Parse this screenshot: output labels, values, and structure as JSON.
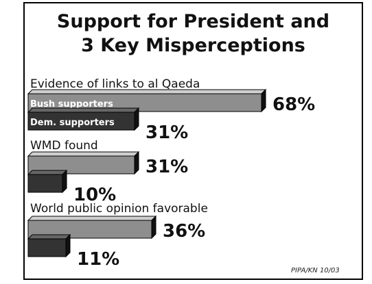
{
  "title_lines": [
    "Support for President and",
    "3 Key Misperceptions"
  ],
  "source": "PIPA/KN 10/03",
  "chart_data": {
    "type": "bar",
    "orientation": "horizontal",
    "title": "Support for President and 3 Key Misperceptions",
    "categories": [
      "Evidence of links to al Qaeda",
      "WMD found",
      "World public opinion favorable"
    ],
    "series": [
      {
        "name": "Bush supporters",
        "values": [
          68,
          31,
          36
        ],
        "labels": [
          "68%",
          "31%",
          "36%"
        ]
      },
      {
        "name": "Dem. supporters",
        "values": [
          31,
          10,
          11
        ],
        "labels": [
          "31%",
          "10%",
          "11%"
        ]
      }
    ],
    "value_unit": "%",
    "xlim": [
      0,
      68
    ],
    "grid": false,
    "legend": "inside-bars-first-group",
    "colors": {
      "bush": "#8e8e8e",
      "dem": "#333333",
      "bar_side": "#111111",
      "bar_top_bush": "#cfcfcf",
      "bar_top_dem": "#666666"
    }
  }
}
